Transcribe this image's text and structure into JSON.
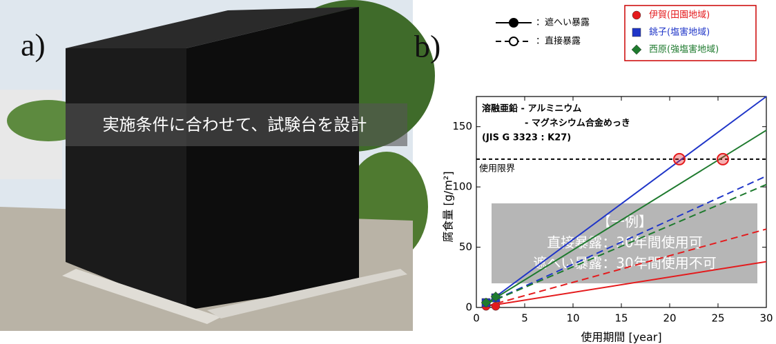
{
  "photo": {
    "label": "a)",
    "caption": "実施条件に合わせて、試験台を設計"
  },
  "chart_data": {
    "type": "line",
    "label": "b)",
    "annotation": [
      "溶融亜鉛 - アルミニウム",
      "- マグネシウム合金めっき",
      "(JIS G 3323 : K27)"
    ],
    "xlabel": "使用期間 [year]",
    "ylabel": "腐食量 [g/m²]",
    "xlim": [
      0,
      30
    ],
    "xticks": [
      0,
      5,
      10,
      15,
      20,
      25,
      30
    ],
    "ylim": [
      0,
      175
    ],
    "yticks": [
      0,
      50,
      100,
      150
    ],
    "line_x": [
      1,
      30
    ],
    "exposures": [
      {
        "name": "：遮へい暴露",
        "dash": false
      },
      {
        "name": "：直接暴露",
        "dash": true
      }
    ],
    "sites": [
      {
        "name": "伊賀(田園地域)",
        "color": "#e41a1c",
        "marker": "circle",
        "shielded": [
          1,
          38
        ],
        "direct": [
          1,
          65
        ],
        "points": {
          "x": [
            1,
            2
          ],
          "values": [
            1,
            1
          ]
        }
      },
      {
        "name": "銚子(塩害地域)",
        "color": "#1f35c8",
        "marker": "square",
        "shielded": [
          3,
          175
        ],
        "direct": [
          3,
          109
        ],
        "points": {
          "x": [
            1,
            2
          ],
          "values": [
            4,
            8
          ]
        }
      },
      {
        "name": "西原(強塩害地域)",
        "color": "#1e7a2e",
        "marker": "diamond",
        "shielded": [
          3,
          147
        ],
        "direct": [
          3,
          102
        ],
        "points": {
          "x": [
            1,
            2
          ],
          "values": [
            4,
            9
          ]
        }
      }
    ],
    "limit": {
      "label": "使用限界",
      "value": 123,
      "x": [
        21,
        25.5
      ],
      "color": "#e41a1c"
    },
    "note": [
      "【一例】",
      "直接暴露：30年間使用可",
      "遮へい暴露：30年間使用不可"
    ]
  }
}
